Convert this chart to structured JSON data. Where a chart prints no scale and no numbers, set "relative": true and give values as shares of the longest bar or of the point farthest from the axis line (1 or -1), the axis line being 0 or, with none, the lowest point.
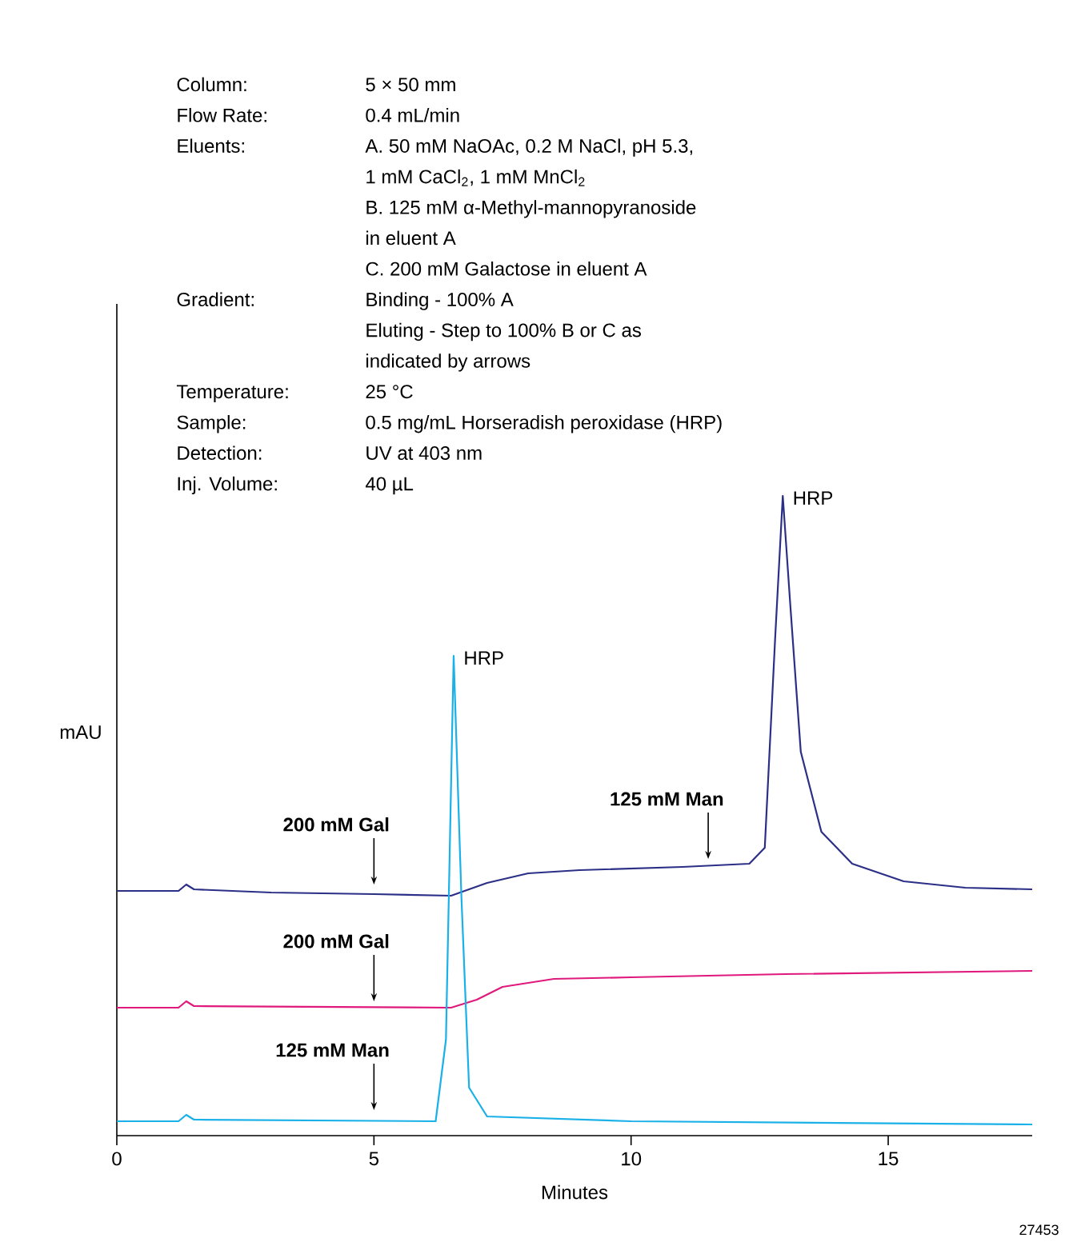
{
  "chart_data": {
    "type": "line",
    "relative": true,
    "xlabel": "Minutes",
    "ylabel": "mAU",
    "xlim": [
      0,
      17.8
    ],
    "xticks": [
      0,
      5,
      10,
      15
    ],
    "marker": "none",
    "line_style": "solid",
    "series": [
      {
        "color": "#2b2f86",
        "x": [
          0,
          1.2,
          1.35,
          1.5,
          3,
          5,
          6.5,
          7.2,
          8,
          9,
          11,
          12.3,
          12.6,
          12.8,
          12.95,
          13.1,
          13.3,
          13.7,
          14.3,
          15.3,
          16.5,
          17.8
        ],
        "values": [
          0.3825,
          0.3825,
          0.3925,
          0.385,
          0.38,
          0.3775,
          0.375,
          0.395,
          0.41,
          0.415,
          0.42,
          0.425,
          0.45,
          0.775,
          1.0,
          0.825,
          0.6,
          0.475,
          0.425,
          0.3975,
          0.3875,
          0.385
        ]
      },
      {
        "color": "#e0197d",
        "x": [
          0,
          1.2,
          1.35,
          1.5,
          6.5,
          7.0,
          7.5,
          8.5,
          10,
          13,
          17.8
        ],
        "values": [
          0.2,
          0.2,
          0.21,
          0.2025,
          0.2,
          0.2125,
          0.2325,
          0.245,
          0.2475,
          0.2525,
          0.2575
        ]
      },
      {
        "color": "#1ab0e8",
        "x": [
          0,
          1.2,
          1.35,
          1.5,
          6.2,
          6.4,
          6.55,
          6.7,
          6.85,
          7.2,
          10,
          17.8
        ],
        "values": [
          0.0225,
          0.0225,
          0.0325,
          0.025,
          0.0225,
          0.15,
          0.75,
          0.375,
          0.075,
          0.03,
          0.0225,
          0.0175
        ]
      }
    ],
    "annotations": [
      "Column:",
      "5 × 50 mm",
      "Flow Rate:",
      "0.4 mL/min",
      "Eluents:",
      "A. 50 mM NaOAc, 0.2 M NaCl, pH 5.3,",
      "1 mM CaCl$_{2}$, 1 mM MnCl$_{2}$",
      "B. 125 mM α-Methyl-mannopyranoside",
      "in eluent A",
      "C. 200 mM Galactose in eluent A",
      "Gradient:",
      "Binding - 100% A",
      "Eluting - Step to 100% B or C as",
      "indicated by arrows",
      "Temperature:",
      "25 °C",
      "Sample:",
      "0.5 mg/mL Horseradish peroxidase (HRP)",
      "Detection:",
      "UV at 403 nm",
      "Inj. Volume:",
      "40 µL",
      "200 mM Gal",
      "200 mM Gal",
      "125 mM Man",
      "125 mM Man",
      {
        "text": "HRP",
        "x": 6.55,
        "y": 0.75
      },
      {
        "text": "HRP",
        "x": 12.95,
        "y": 1.0
      },
      "27453"
    ]
  }
}
